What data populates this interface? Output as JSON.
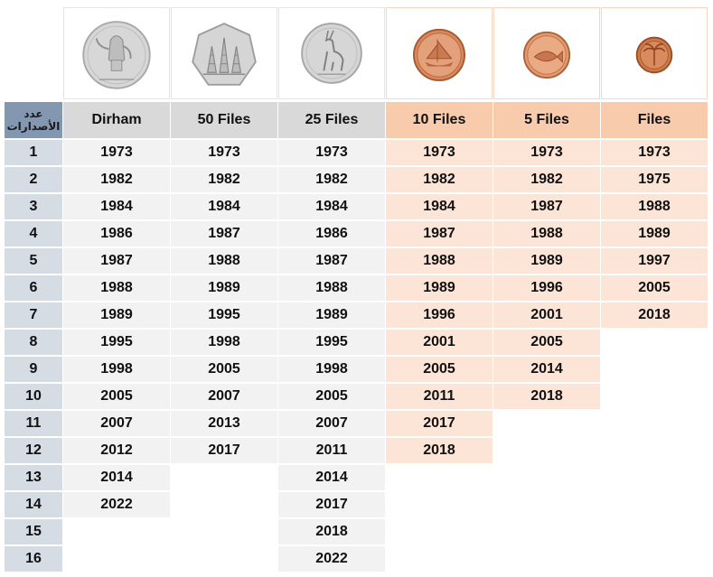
{
  "count_header": [
    "عدد",
    "الأصدارات"
  ],
  "index": [
    "1",
    "2",
    "3",
    "4",
    "5",
    "6",
    "7",
    "8",
    "9",
    "10",
    "11",
    "12",
    "13",
    "14",
    "15",
    "16"
  ],
  "columns": [
    {
      "label": "Dirham",
      "tone": "grey",
      "coin_icon": "dirham-coin-dallah-icon",
      "years": [
        "1973",
        "1982",
        "1984",
        "1986",
        "1987",
        "1988",
        "1989",
        "1995",
        "1998",
        "2005",
        "2007",
        "2012",
        "2014",
        "2022"
      ]
    },
    {
      "label": "50 Files",
      "tone": "grey",
      "coin_icon": "50-fils-coin-oil-derricks-icon",
      "years": [
        "1973",
        "1982",
        "1984",
        "1987",
        "1988",
        "1989",
        "1995",
        "1998",
        "2005",
        "2007",
        "2013",
        "2017"
      ]
    },
    {
      "label": "25 Files",
      "tone": "grey",
      "coin_icon": "25-fils-coin-gazelle-icon",
      "years": [
        "1973",
        "1982",
        "1984",
        "1986",
        "1987",
        "1988",
        "1989",
        "1995",
        "1998",
        "2005",
        "2007",
        "2011",
        "2014",
        "2017",
        "2018",
        "2022"
      ]
    },
    {
      "label": "10 Files",
      "tone": "peach",
      "coin_icon": "10-fils-coin-dhow-icon",
      "years": [
        "1973",
        "1982",
        "1984",
        "1987",
        "1988",
        "1989",
        "1996",
        "2001",
        "2005",
        "2011",
        "2017",
        "2018"
      ]
    },
    {
      "label": "5 Files",
      "tone": "peach",
      "coin_icon": "5-fils-coin-fish-icon",
      "years": [
        "1973",
        "1982",
        "1987",
        "1988",
        "1989",
        "1996",
        "2001",
        "2005",
        "2014",
        "2018"
      ]
    },
    {
      "label": "Files",
      "tone": "peach",
      "coin_icon": "1-fils-coin-palm-icon",
      "years": [
        "1973",
        "1975",
        "1988",
        "1989",
        "1997",
        "2005",
        "2018"
      ]
    }
  ],
  "colors": {
    "silver_coin": "#d0d0d0",
    "bronze_coin": "#d98a5c",
    "header_grey": "#d9d9d9",
    "header_peach": "#f8cbad",
    "cell_grey": "#f2f2f2",
    "cell_peach": "#fce4d6",
    "count_header": "#8497b0",
    "index_cell": "#d6dce4"
  }
}
